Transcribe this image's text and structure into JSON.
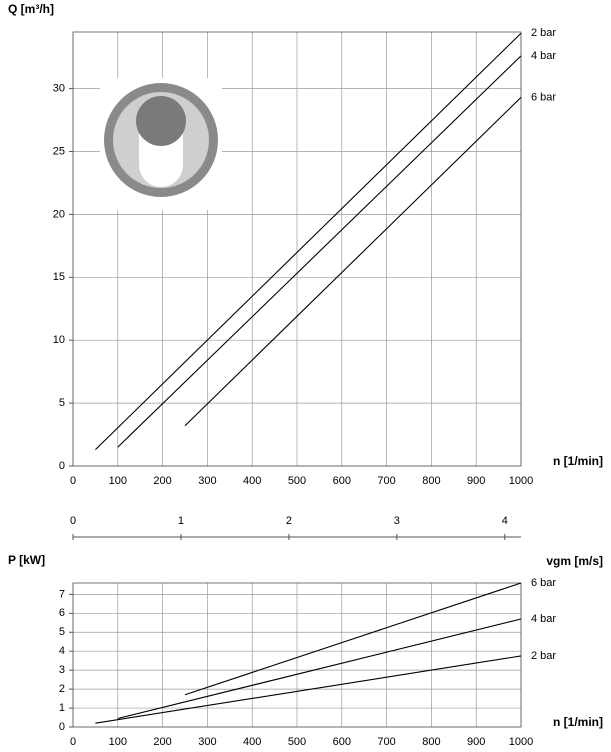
{
  "chart_data": [
    {
      "type": "line",
      "ylabel": "Q [m³/h]",
      "xlabel": "n [1/min]",
      "xlim": [
        0,
        1000
      ],
      "ylim": [
        0,
        34.5
      ],
      "xticks": [
        0,
        100,
        200,
        300,
        400,
        500,
        600,
        700,
        800,
        900,
        1000
      ],
      "yticks": [
        0,
        5,
        10,
        15,
        20,
        25,
        30
      ],
      "grid": true,
      "series": [
        {
          "name": "2 bar",
          "color": "#000000",
          "x": [
            50,
            1000
          ],
          "values": [
            1.3,
            34.4
          ]
        },
        {
          "name": "4 bar",
          "color": "#000000",
          "x": [
            100,
            1000
          ],
          "values": [
            1.5,
            32.6
          ]
        },
        {
          "name": "6 bar",
          "color": "#000000",
          "x": [
            250,
            1000
          ],
          "values": [
            3.2,
            29.3
          ]
        }
      ]
    },
    {
      "type": "axis",
      "xlabel": "vgm [m/s]",
      "xlim": [
        0,
        4.15
      ],
      "xticks": [
        0,
        1,
        2,
        3,
        4
      ]
    },
    {
      "type": "line",
      "ylabel": "P [kW]",
      "xlabel": "n [1/min]",
      "xlim": [
        0,
        1000
      ],
      "ylim": [
        0,
        7.6
      ],
      "xticks": [
        0,
        100,
        200,
        300,
        400,
        500,
        600,
        700,
        800,
        900,
        1000
      ],
      "yticks": [
        0,
        1,
        2,
        3,
        4,
        5,
        6,
        7
      ],
      "grid": true,
      "series": [
        {
          "name": "6 bar",
          "color": "#000000",
          "x": [
            250,
            1000
          ],
          "values": [
            1.7,
            7.6
          ]
        },
        {
          "name": "4 bar",
          "color": "#000000",
          "x": [
            100,
            1000
          ],
          "values": [
            0.45,
            5.7
          ]
        },
        {
          "name": "2 bar",
          "color": "#000000",
          "x": [
            50,
            1000
          ],
          "values": [
            0.2,
            3.75
          ]
        }
      ]
    }
  ]
}
